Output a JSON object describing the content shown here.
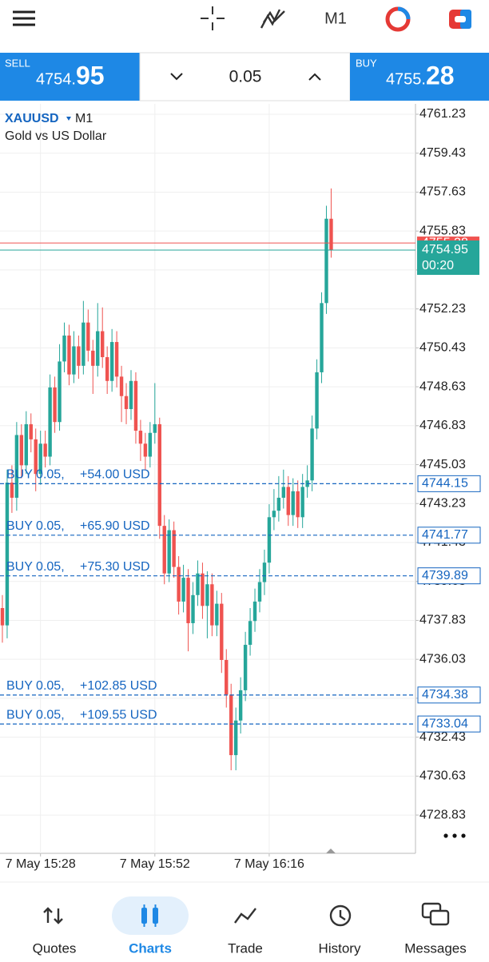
{
  "toolbar": {
    "timeframe": "M1"
  },
  "trade_panel": {
    "sell_label": "SELL",
    "sell_price_main": "4754.",
    "sell_price_big": "95",
    "volume": "0.05",
    "buy_label": "BUY",
    "buy_price_main": "4755.",
    "buy_price_big": "28"
  },
  "chart_data": {
    "type": "candlestick",
    "symbol": "XAUUSD",
    "timeframe": "M1",
    "description": "Gold vs US Dollar",
    "up_color": "#26a69a",
    "down_color": "#ef5350",
    "grid": true,
    "open": [
      4738.4,
      4737.6,
      4744.2,
      4743.5,
      4746.4,
      4745.0,
      4746.9,
      4746.2,
      4744.6,
      4746.0,
      4745.4,
      4748.6,
      4747.0,
      4749.8,
      4751.0,
      4749.2,
      4750.5,
      4749.6,
      4751.6,
      4750.3,
      4749.6,
      4751.2,
      4750.0,
      4748.9,
      4750.7,
      4749.1,
      4748.2,
      4747.6,
      4748.9,
      4746.6,
      4746.0,
      4745.4,
      4746.5,
      4746.9,
      4742.2,
      4740.0,
      4742.0,
      4740.3,
      4738.7,
      4739.8,
      4737.7,
      4739.0,
      4740.0,
      4738.5,
      4739.5,
      4737.6,
      4738.6,
      4736.0,
      4734.4,
      4731.6,
      4733.2,
      4734.6,
      4736.7,
      4737.8,
      4738.7,
      4739.6,
      4740.5,
      4742.6,
      4742.9,
      4743.5,
      4744.0,
      4742.7,
      4743.8,
      4742.6,
      4744.0,
      4744.3,
      4746.7,
      4749.3,
      4752.5,
      4756.4
    ],
    "high": [
      4739.0,
      4744.8,
      4745.0,
      4747.0,
      4746.9,
      4747.5,
      4747.4,
      4746.7,
      4746.6,
      4746.6,
      4749.2,
      4749.1,
      4750.6,
      4751.6,
      4751.5,
      4751.2,
      4751.0,
      4752.6,
      4752.2,
      4750.8,
      4752.5,
      4752.3,
      4750.5,
      4751.3,
      4751.2,
      4749.6,
      4748.8,
      4749.4,
      4749.3,
      4747.1,
      4746.5,
      4747.0,
      4748.8,
      4747.2,
      4742.7,
      4742.5,
      4742.4,
      4740.8,
      4740.4,
      4740.2,
      4739.6,
      4740.6,
      4740.5,
      4740.1,
      4740.0,
      4739.2,
      4739.1,
      4736.5,
      4734.9,
      4733.8,
      4735.2,
      4737.3,
      4738.4,
      4739.3,
      4740.2,
      4741.1,
      4743.2,
      4743.9,
      4744.5,
      4744.8,
      4744.5,
      4744.4,
      4744.3,
      4744.6,
      4745.0,
      4747.3,
      4749.9,
      4753.0,
      4757.0,
      4757.8
    ],
    "low": [
      4736.8,
      4737.0,
      4742.8,
      4742.9,
      4744.4,
      4744.6,
      4745.6,
      4743.8,
      4744.1,
      4744.9,
      4745.0,
      4746.5,
      4746.6,
      4749.3,
      4748.7,
      4748.8,
      4749.0,
      4749.2,
      4749.8,
      4748.3,
      4749.1,
      4749.5,
      4748.3,
      4748.4,
      4748.6,
      4747.0,
      4746.9,
      4747.1,
      4746.0,
      4745.2,
      4744.8,
      4744.9,
      4746.0,
      4741.6,
      4739.5,
      4739.6,
      4739.8,
      4738.1,
      4738.2,
      4736.4,
      4737.2,
      4738.5,
      4737.9,
      4737.0,
      4737.1,
      4737.1,
      4735.4,
      4733.8,
      4730.9,
      4730.9,
      4732.6,
      4734.1,
      4736.2,
      4737.3,
      4738.2,
      4739.0,
      4740.0,
      4742.0,
      4742.4,
      4743.0,
      4742.2,
      4742.2,
      4742.1,
      4742.1,
      4743.5,
      4743.8,
      4746.2,
      4748.8,
      4752.0,
      4754.6
    ],
    "close": [
      4737.6,
      4744.2,
      4743.5,
      4746.4,
      4745.0,
      4746.9,
      4746.2,
      4744.6,
      4746.0,
      4745.4,
      4748.6,
      4747.0,
      4749.8,
      4751.0,
      4749.2,
      4750.5,
      4749.6,
      4751.6,
      4750.3,
      4749.6,
      4751.2,
      4750.0,
      4748.9,
      4750.7,
      4749.1,
      4748.2,
      4747.6,
      4748.9,
      4746.6,
      4746.0,
      4745.4,
      4746.5,
      4746.9,
      4742.2,
      4740.0,
      4742.0,
      4740.3,
      4738.7,
      4739.8,
      4737.7,
      4739.0,
      4740.0,
      4738.5,
      4739.5,
      4737.6,
      4738.6,
      4736.0,
      4734.4,
      4731.6,
      4733.2,
      4734.6,
      4736.7,
      4737.8,
      4738.7,
      4739.6,
      4740.5,
      4742.6,
      4742.9,
      4743.5,
      4744.0,
      4742.7,
      4743.8,
      4742.6,
      4744.0,
      4744.3,
      4746.7,
      4749.3,
      4752.5,
      4756.4,
      4754.95
    ],
    "xlim": [
      -0.5,
      86.7
    ],
    "xticks": [
      {
        "value": 8,
        "label": "7 May 15:28"
      },
      {
        "value": 32,
        "label": "7 May 15:52"
      },
      {
        "value": 56,
        "label": "7 May 16:16"
      }
    ],
    "ylim": [
      4727.06,
      4761.71
    ],
    "yticks": [
      4761.23,
      4759.43,
      4757.63,
      4755.83,
      4754.03,
      4752.23,
      4750.43,
      4748.63,
      4746.83,
      4745.03,
      4743.23,
      4741.43,
      4739.63,
      4737.83,
      4736.03,
      4734.23,
      4732.43,
      4730.63,
      4728.83
    ],
    "bid": 4754.95,
    "bid_color": "#26a69a",
    "bid_timer": "00:20",
    "ask": 4755.28,
    "ask_color": "#ef5350",
    "orders": [
      {
        "label": "BUY 0.05,",
        "profit": "+54.00 USD",
        "price": 4744.15
      },
      {
        "label": "BUY 0.05,",
        "profit": "+65.90 USD",
        "price": 4741.77
      },
      {
        "label": "BUY 0.05,",
        "profit": "+75.30 USD",
        "price": 4739.89
      },
      {
        "label": "BUY 0.05,",
        "profit": "+102.85 USD",
        "price": 4734.38
      },
      {
        "label": "BUY 0.05,",
        "profit": "+109.55 USD",
        "price": 4733.04
      }
    ],
    "order_color": "#1565c0"
  },
  "bottom_nav": {
    "items": [
      "Quotes",
      "Charts",
      "Trade",
      "History",
      "Messages"
    ]
  }
}
